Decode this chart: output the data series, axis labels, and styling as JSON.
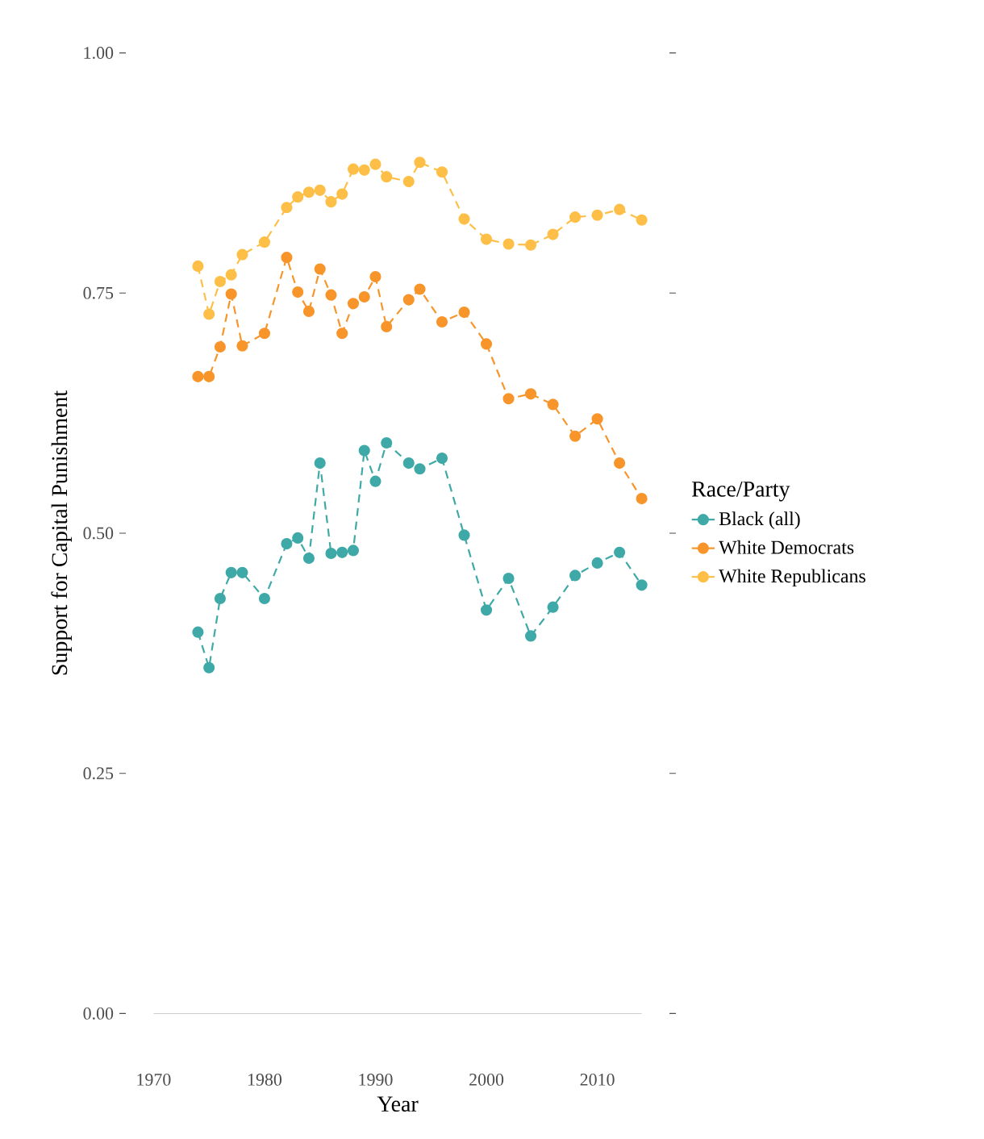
{
  "chart_data": {
    "type": "line",
    "xlabel": "Year",
    "ylabel": "Support for Capital Punishment",
    "legend_title": "Race/Party",
    "legend": "right",
    "marker": "circle",
    "line_style": "dashed",
    "grid": false,
    "x": [
      1974,
      1975,
      1976,
      1977,
      1978,
      1980,
      1982,
      1983,
      1984,
      1985,
      1986,
      1987,
      1988,
      1989,
      1990,
      1991,
      1993,
      1994,
      1996,
      1998,
      2000,
      2002,
      2004,
      2006,
      2008,
      2010,
      2012,
      2014
    ],
    "xlim": [
      1970,
      2014
    ],
    "xticks": [
      1970,
      1980,
      1990,
      2000,
      2010
    ],
    "ylim": [
      0,
      1
    ],
    "yticks": [
      {
        "value": 0,
        "label": "0.00"
      },
      {
        "value": 0.25,
        "label": "0.25"
      },
      {
        "value": 0.5,
        "label": "0.50"
      },
      {
        "value": 0.75,
        "label": "0.75"
      },
      {
        "value": 1,
        "label": "1.00"
      }
    ],
    "series": [
      {
        "name": "Black (all)",
        "color": "#3fa9a8",
        "values": [
          0.397,
          0.36,
          0.432,
          0.459,
          0.459,
          0.432,
          0.489,
          0.495,
          0.474,
          0.573,
          0.479,
          0.48,
          0.482,
          0.586,
          0.554,
          0.594,
          0.573,
          0.567,
          0.578,
          0.498,
          0.42,
          0.453,
          0.393,
          0.423,
          0.456,
          0.469,
          0.48,
          0.446
        ]
      },
      {
        "name": "White Democrats",
        "color": "#f7952b",
        "values": [
          0.663,
          0.663,
          0.694,
          0.749,
          0.695,
          0.708,
          0.787,
          0.751,
          0.731,
          0.775,
          0.748,
          0.708,
          0.739,
          0.746,
          0.767,
          0.715,
          0.743,
          0.754,
          0.72,
          0.73,
          0.697,
          0.64,
          0.645,
          0.634,
          0.601,
          0.619,
          0.573,
          0.536
        ]
      },
      {
        "name": "White Republicans",
        "color": "#fdbf47",
        "values": [
          0.778,
          0.728,
          0.762,
          0.769,
          0.79,
          0.803,
          0.839,
          0.85,
          0.855,
          0.857,
          0.845,
          0.853,
          0.879,
          0.878,
          0.884,
          0.871,
          0.866,
          0.886,
          0.876,
          0.827,
          0.806,
          0.801,
          0.8,
          0.811,
          0.829,
          0.831,
          0.837,
          0.826
        ]
      }
    ]
  }
}
